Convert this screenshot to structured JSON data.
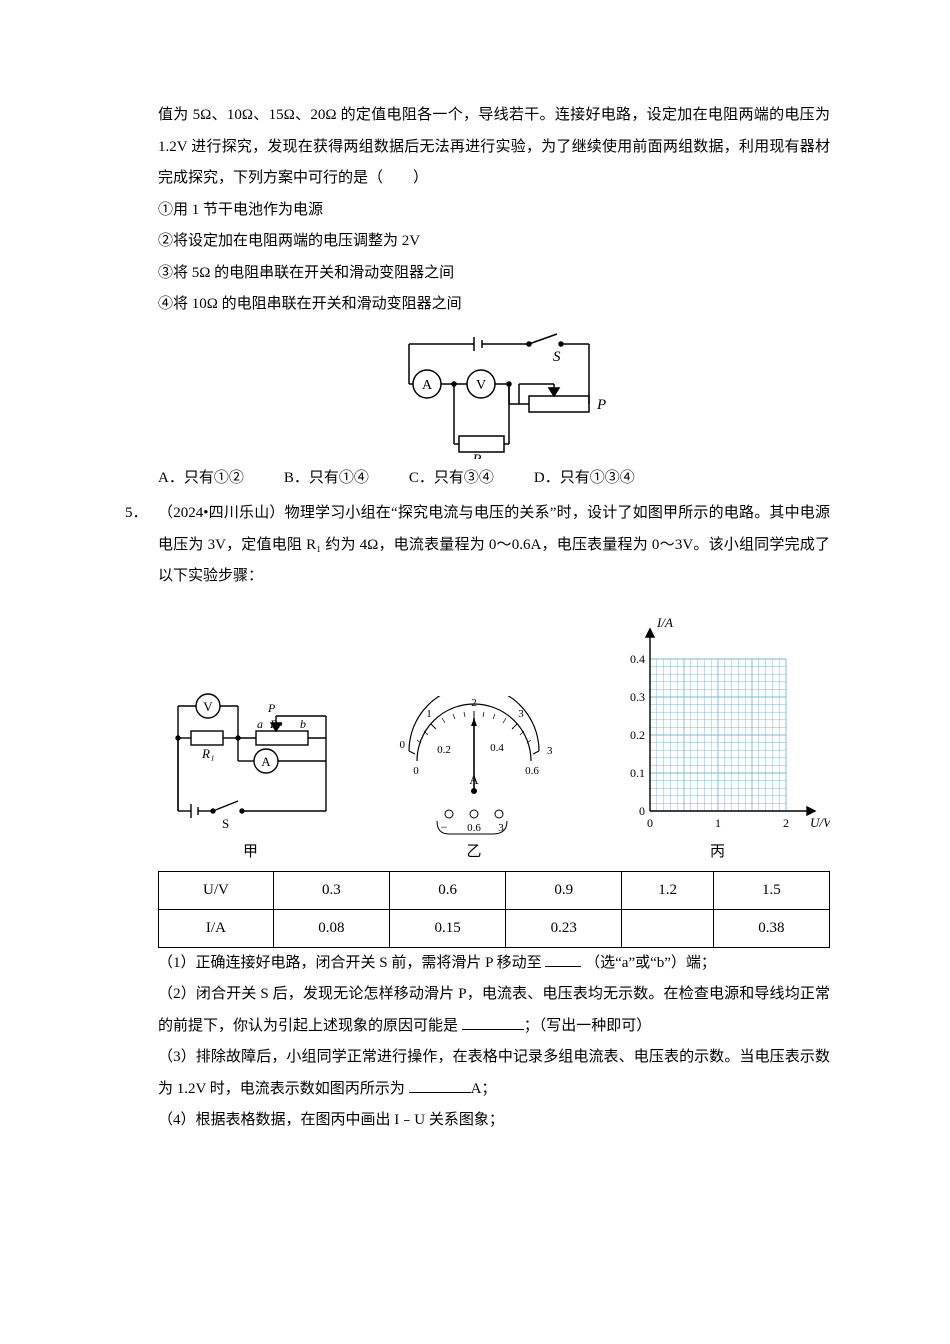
{
  "q4": {
    "cont_lines": [
      "值为 5Ω、10Ω、15Ω、20Ω 的定值电阻各一个，导线若干。连接好电路，设定加在电阻两端的电压为 1.2V 进行探究，发现在获得两组数据后无法再进行实验，为了继续使用前面两组数据，利用现有器材完成探究，下列方案中可行的是（　　）"
    ],
    "items": [
      "①用 1 节干电池作为电源",
      "②将设定加在电阻两端的电压调整为 2V",
      "③将 5Ω 的电阻串联在开关和滑动变阻器之间",
      "④将 10Ω 的电阻串联在开关和滑动变阻器之间"
    ],
    "circuit": {
      "labels": {
        "S": "S",
        "A": "A",
        "V": "V",
        "R": "R",
        "P": "P"
      }
    },
    "options": {
      "A": "A．只有①②",
      "B": "B．只有①④",
      "C": "C．只有③④",
      "D": "D．只有①③④"
    }
  },
  "q5": {
    "num": "5．",
    "source": "（2024•四川乐山）",
    "stem": "物理学习小组在“探究电流与电压的关系”时，设计了如图甲所示的电路。其中电源电压为 3V，定值电阻 R₁ 约为 4Ω，电流表量程为 0～0.6A，电压表量程为 0～3V。该小组同学完成了以下实验步骤：",
    "fig_labels": {
      "jia": "甲",
      "yi": "乙",
      "bing": "丙"
    },
    "fig_jia": {
      "V": "V",
      "A": "A",
      "S": "S",
      "R1": "R₁",
      "Rp": "Rᴘ",
      "a": "a",
      "b": "b",
      "P": "P"
    },
    "fig_yi": {
      "scale_top": [
        "0",
        "1",
        "2",
        "3"
      ],
      "scale_bot": [
        "0",
        "0.2",
        "0.4",
        "0.6"
      ],
      "unit": "A",
      "minus": "−",
      "sel1": "0.6",
      "sel2": "3"
    },
    "fig_bing": {
      "ylabel": "I/A",
      "xlabel": "U/V",
      "yticks": [
        "0",
        "0.1",
        "0.2",
        "0.3",
        "0.4"
      ],
      "xticks": [
        "0",
        "1",
        "2"
      ],
      "grid_color": "#7ab8d8",
      "axis_color": "#000000"
    },
    "table": {
      "header": [
        "U/V",
        "0.3",
        "0.6",
        "0.9",
        "1.2",
        "1.5"
      ],
      "row": [
        "I/A",
        "0.08",
        "0.15",
        "0.23",
        "",
        "0.38"
      ]
    },
    "subs": {
      "s1_a": "（1）正确连接好电路，闭合开关 S 前，需将滑片 P 移动至 ",
      "s1_b": "（选“a”或“b”）端；",
      "s2_a": "（2）闭合开关 S 后，发现无论怎样移动滑片 P，电流表、电压表均无示数。在检查电源和导线均正常的前提下，你认为引起上述现象的原因可能是 ",
      "s2_b": "；（写出一种即可）",
      "s3_a": "（3）排除故障后，小组同学正常进行操作，在表格中记录多组电流表、电压表的示数。当电压表示数为 1.2V 时，电流表示数如图丙所示为 ",
      "s3_b": "A；",
      "s4": "（4）根据表格数据，在图丙中画出 I﹣U 关系图象；"
    },
    "blank_widths": {
      "short": 36,
      "med": 62,
      "long": 62
    }
  }
}
